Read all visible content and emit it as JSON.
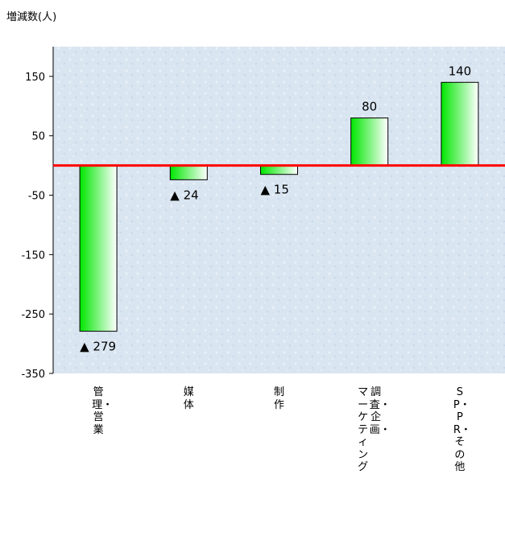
{
  "chart_data": {
    "type": "bar",
    "ylabel": "増減数(人)",
    "categories": [
      "管理・営業",
      "媒体",
      "制作",
      "調査・企画・マーケティング",
      "SP・PR・その他"
    ],
    "category_columns": [
      [
        "管理・営業"
      ],
      [
        "媒体"
      ],
      [
        "制作"
      ],
      [
        "調査・企画・",
        "マーケティング"
      ],
      [
        "SP・PR・その他"
      ]
    ],
    "values": [
      -279,
      -24,
      -15,
      80,
      140
    ],
    "data_labels": [
      "▲ 279",
      "▲ 24",
      "▲ 15",
      "80",
      "140"
    ],
    "yticks": [
      "150",
      "50",
      "-50",
      "-150",
      "-250",
      "-350"
    ],
    "ytick_values": [
      150,
      50,
      -50,
      -150,
      -250,
      -350
    ],
    "ylim": [
      -350,
      200
    ],
    "grid": false,
    "legend": "none",
    "baseline_color": "#ff0000",
    "bar_gradient": [
      "#00e600",
      "#ffffff"
    ],
    "plot_background": "#d8e4f0"
  }
}
